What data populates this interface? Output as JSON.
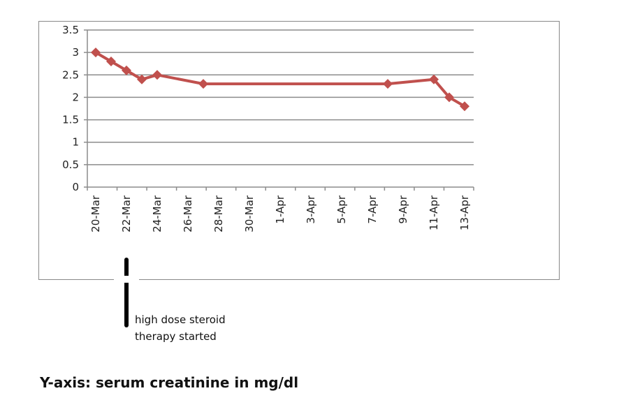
{
  "chart_data": {
    "type": "line",
    "title": "",
    "xlabel": "",
    "ylabel": "",
    "x_tick_labels": [
      "20-Mar",
      "22-Mar",
      "24-Mar",
      "26-Mar",
      "28-Mar",
      "30-Mar",
      "1-Apr",
      "3-Apr",
      "5-Apr",
      "7-Apr",
      "9-Apr",
      "11-Apr",
      "13-Apr"
    ],
    "y_tick_labels": [
      "0",
      "0.5",
      "1",
      "1.5",
      "2",
      "2.5",
      "3",
      "3.5"
    ],
    "ylim": [
      0,
      3.5
    ],
    "xlim": [
      "20-Mar",
      "13-Apr"
    ],
    "grid": true,
    "line_color": "#c0504d",
    "series": [
      {
        "x": [
          "20-Mar",
          "21-Mar",
          "22-Mar",
          "23-Mar",
          "24-Mar",
          "27-Mar",
          "8-Apr",
          "11-Apr",
          "12-Apr",
          "13-Apr"
        ],
        "values": [
          3.0,
          2.8,
          2.6,
          2.4,
          2.5,
          2.3,
          2.3,
          2.4,
          2.0,
          1.8
        ]
      }
    ],
    "annotation": {
      "x": "22-Mar",
      "text_line1": "high dose steroid",
      "text_line2": "therapy started"
    }
  },
  "caption": "Y-axis: serum creatinine in mg/dl"
}
